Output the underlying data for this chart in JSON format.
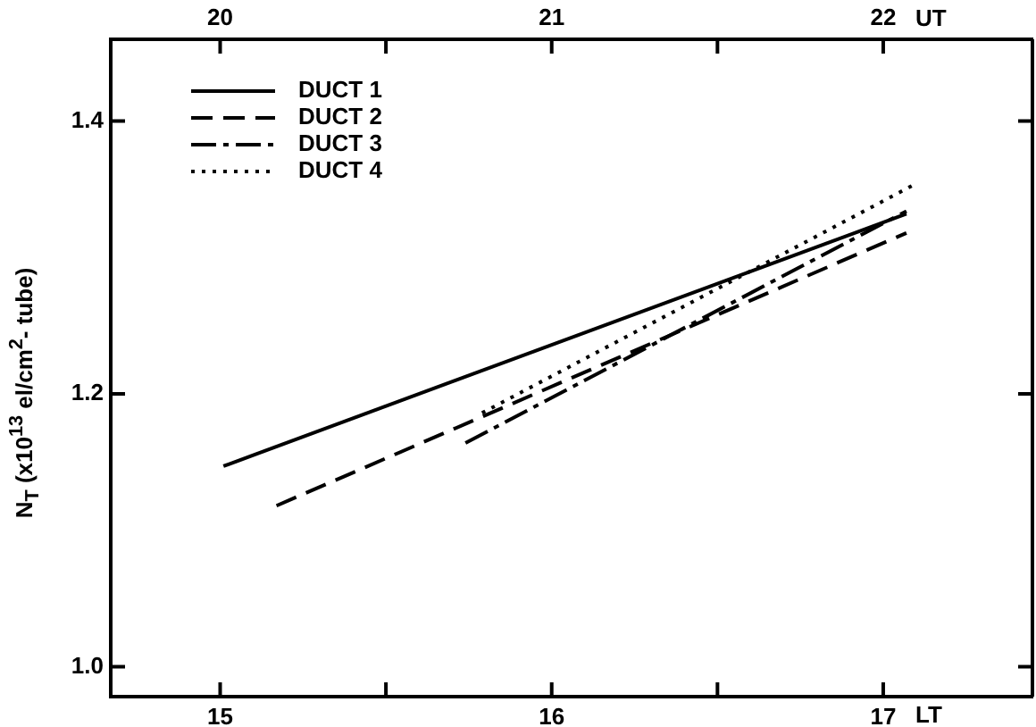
{
  "chart_data": {
    "type": "line",
    "xlabel": "LT",
    "x2label": "UT",
    "ylabel": "N$_{T}$ (x10$^{13}$ el/cm$^{2}$- tube)",
    "xlim": [
      14.67,
      17.45
    ],
    "xticks": [
      15,
      {
        "value": 15.5,
        "label": null
      },
      16,
      {
        "value": 16.5,
        "label": null
      },
      17
    ],
    "x2lim": [
      19.67,
      22.45
    ],
    "x2ticks": [
      20,
      {
        "value": 20.5,
        "label": null
      },
      21,
      {
        "value": 21.5,
        "label": null
      },
      22
    ],
    "ylim": [
      0.978,
      1.46
    ],
    "yticks": [
      {
        "value": 1.0,
        "label": "1.0"
      },
      {
        "value": 1.2,
        "label": "1.2"
      },
      {
        "value": 1.4,
        "label": "1.4"
      }
    ],
    "grid": false,
    "legend": "top left",
    "marker": "none",
    "series": [
      {
        "name": "DUCT 1",
        "color": "#000000",
        "line_style": "solid",
        "x": [
          15.01,
          17.07
        ],
        "values": [
          1.147,
          1.332
        ]
      },
      {
        "name": "DUCT 2",
        "color": "#000000",
        "line_style": "dashed",
        "x": [
          15.17,
          17.07
        ],
        "values": [
          1.118,
          1.318
        ]
      },
      {
        "name": "DUCT 3",
        "color": "#000000",
        "line_style": "dashdot",
        "x": [
          15.74,
          17.07
        ],
        "values": [
          1.164,
          1.334
        ]
      },
      {
        "name": "DUCT 4",
        "color": "#000000",
        "line_style": "dotted",
        "x": [
          15.79,
          17.09
        ],
        "values": [
          1.186,
          1.353
        ]
      }
    ]
  }
}
